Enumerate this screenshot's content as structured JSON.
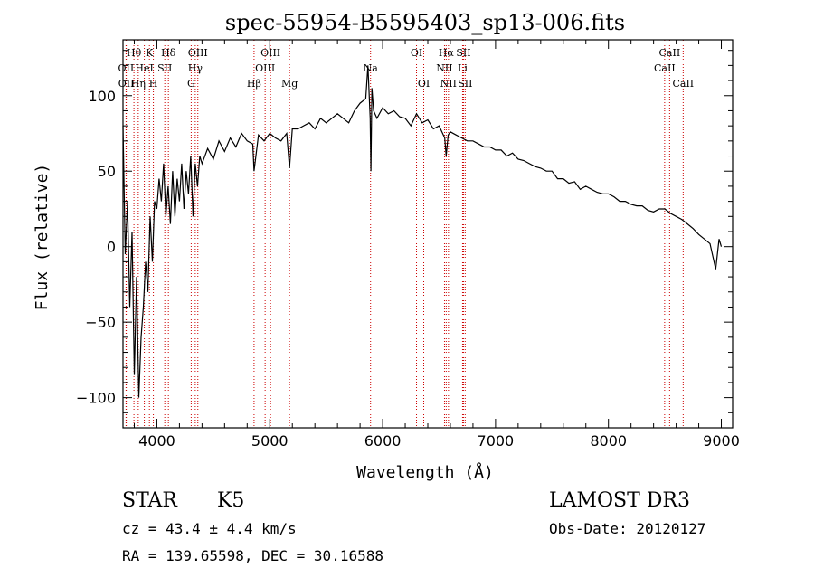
{
  "chart_data": {
    "type": "line",
    "title": "spec-55954-B5595403_sp13-006.fits",
    "xlabel": "Wavelength (Å)",
    "ylabel": "Flux (relative)",
    "xlim": [
      3700,
      9100
    ],
    "ylim": [
      -120,
      137
    ],
    "x_ticks": [
      4000,
      5000,
      6000,
      7000,
      8000,
      9000
    ],
    "x_tick_labels": [
      "4000",
      "5000",
      "6000",
      "7000",
      "8000",
      "9000"
    ],
    "y_ticks": [
      -100,
      -50,
      0,
      50,
      100
    ],
    "y_tick_labels": [
      "−100",
      "−50",
      "0",
      "50",
      "100"
    ],
    "grid": false,
    "series": [
      {
        "name": "flux",
        "x": [
          3700,
          3720,
          3740,
          3760,
          3780,
          3800,
          3820,
          3840,
          3860,
          3880,
          3900,
          3920,
          3940,
          3960,
          3980,
          4000,
          4020,
          4040,
          4060,
          4080,
          4100,
          4120,
          4140,
          4160,
          4180,
          4200,
          4220,
          4240,
          4260,
          4280,
          4300,
          4320,
          4340,
          4360,
          4380,
          4400,
          4450,
          4500,
          4550,
          4600,
          4650,
          4700,
          4750,
          4800,
          4850,
          4861,
          4900,
          4950,
          5000,
          5050,
          5100,
          5150,
          5175,
          5200,
          5250,
          5300,
          5350,
          5400,
          5450,
          5500,
          5550,
          5600,
          5650,
          5700,
          5750,
          5800,
          5850,
          5870,
          5890,
          5896,
          5905,
          5920,
          5950,
          6000,
          6050,
          6100,
          6150,
          6200,
          6250,
          6300,
          6350,
          6400,
          6450,
          6500,
          6550,
          6563,
          6580,
          6600,
          6650,
          6700,
          6750,
          6800,
          6850,
          6900,
          6950,
          7000,
          7050,
          7100,
          7150,
          7200,
          7250,
          7300,
          7350,
          7400,
          7450,
          7500,
          7550,
          7600,
          7650,
          7700,
          7750,
          7800,
          7850,
          7900,
          7950,
          8000,
          8050,
          8100,
          8150,
          8200,
          8250,
          8300,
          8350,
          8400,
          8450,
          8500,
          8550,
          8600,
          8650,
          8700,
          8750,
          8800,
          8850,
          8900,
          8950,
          8980,
          9000
        ],
        "values": [
          80,
          -5,
          30,
          -40,
          10,
          -85,
          -20,
          -100,
          -60,
          -40,
          -10,
          -30,
          20,
          -10,
          30,
          25,
          45,
          30,
          55,
          20,
          40,
          15,
          50,
          20,
          45,
          30,
          55,
          25,
          50,
          35,
          60,
          20,
          55,
          40,
          60,
          55,
          65,
          58,
          70,
          63,
          72,
          66,
          75,
          70,
          68,
          50,
          74,
          70,
          75,
          72,
          70,
          75,
          52,
          78,
          78,
          80,
          82,
          78,
          85,
          82,
          85,
          88,
          85,
          82,
          90,
          95,
          98,
          120,
          85,
          50,
          105,
          90,
          85,
          92,
          88,
          90,
          86,
          85,
          80,
          88,
          82,
          84,
          78,
          80,
          72,
          60,
          74,
          76,
          74,
          72,
          70,
          70,
          68,
          66,
          66,
          64,
          64,
          60,
          62,
          58,
          57,
          55,
          53,
          52,
          50,
          50,
          45,
          45,
          42,
          43,
          38,
          40,
          38,
          36,
          35,
          35,
          33,
          30,
          30,
          28,
          27,
          27,
          24,
          23,
          25,
          25,
          22,
          20,
          18,
          15,
          12,
          8,
          5,
          2,
          -15,
          5,
          0
        ]
      }
    ],
    "annotations": [
      {
        "name": "Hθ",
        "x": 3797,
        "row": 1
      },
      {
        "name": "OII",
        "x": 3727,
        "row": 2
      },
      {
        "name": "OII",
        "x": 3729,
        "row": 3
      },
      {
        "name": "HeI",
        "x": 3889,
        "row": 2
      },
      {
        "name": "Hη",
        "x": 3835,
        "row": 3
      },
      {
        "name": "K",
        "x": 3934,
        "row": 1
      },
      {
        "name": "SII",
        "x": 4070,
        "row": 2
      },
      {
        "name": "H",
        "x": 3969,
        "row": 3
      },
      {
        "name": "Hδ",
        "x": 4102,
        "row": 1
      },
      {
        "name": "OIII",
        "x": 4363,
        "row": 1
      },
      {
        "name": "Hγ",
        "x": 4340,
        "row": 2
      },
      {
        "name": "G",
        "x": 4304,
        "row": 3
      },
      {
        "name": "Hβ",
        "x": 4861,
        "row": 3
      },
      {
        "name": "OIII",
        "x": 5007,
        "row": 1
      },
      {
        "name": "OIII",
        "x": 4959,
        "row": 2
      },
      {
        "name": "Mg",
        "x": 5175,
        "row": 3
      },
      {
        "name": "Na",
        "x": 5893,
        "row": 2
      },
      {
        "name": "OI",
        "x": 6300,
        "row": 1
      },
      {
        "name": "OI",
        "x": 6364,
        "row": 3
      },
      {
        "name": "Hα",
        "x": 6563,
        "row": 1
      },
      {
        "name": "SII",
        "x": 6716,
        "row": 1
      },
      {
        "name": "NII",
        "x": 6548,
        "row": 2
      },
      {
        "name": "Li",
        "x": 6708,
        "row": 2
      },
      {
        "name": "NII",
        "x": 6583,
        "row": 3
      },
      {
        "name": "SII",
        "x": 6731,
        "row": 3
      },
      {
        "name": "CaII",
        "x": 8542,
        "row": 1
      },
      {
        "name": "CaII",
        "x": 8498,
        "row": 2
      },
      {
        "name": "CaII",
        "x": 8662,
        "row": 3
      }
    ],
    "line_color": "#000000",
    "marker_color": "#cc0000"
  },
  "info": {
    "class": "STAR",
    "subclass": "K5",
    "cz": "cz = 43.4 ± 4.4 km/s",
    "radec": "RA = 139.65598, DEC =  30.16588",
    "survey": "LAMOST DR3",
    "obsdate": "Obs-Date: 20120127"
  }
}
